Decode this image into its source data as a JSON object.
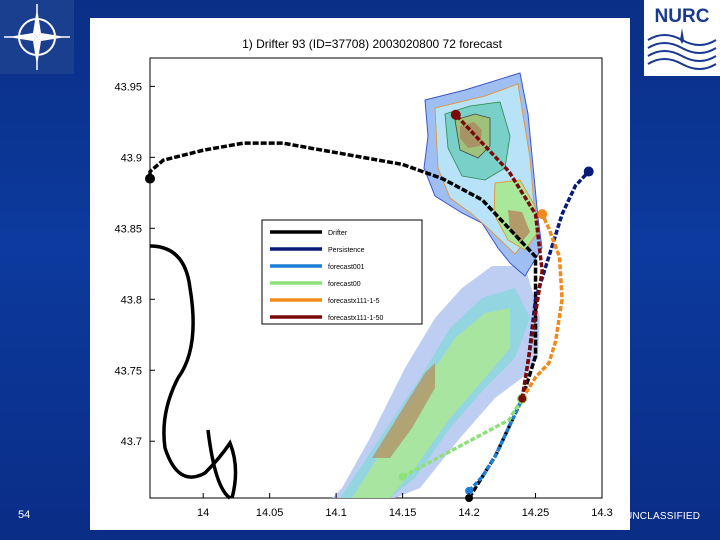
{
  "slide": {
    "number": "54",
    "classification": "O UNCLASSIFIED"
  },
  "logos": {
    "left": "nato-compass-logo",
    "right_text": "NURC"
  },
  "colors": {
    "slide_background": "#0b3593",
    "drifter": "#000000",
    "persistence": "#0a1a7a",
    "forecast001": "#1e7fd6",
    "forecast00": "#8ee07a",
    "forecastx111_1_5": "#f08a1c",
    "forecastx111_1_50": "#7a0a0a"
  },
  "chart_data": {
    "type": "line",
    "title": "1) Drifter 93 (ID=37708) 2003020800 72 forecast",
    "xlim": [
      13.96,
      14.3
    ],
    "ylim": [
      43.66,
      43.97
    ],
    "xticks": [
      "14",
      "14.05",
      "14.1",
      "14.15",
      "14.2",
      "14.25",
      "14.3"
    ],
    "xtick_values": [
      14,
      14.05,
      14.1,
      14.15,
      14.2,
      14.25,
      14.3
    ],
    "yticks": [
      "43.95",
      "43.9",
      "43.85",
      "43.8",
      "43.75",
      "43.7"
    ],
    "ytick_values": [
      43.95,
      43.9,
      43.85,
      43.8,
      43.75,
      43.7
    ],
    "legend": [
      "Drifter",
      "Persistence",
      "forecast001",
      "forecast00",
      "forecastx111-1-5",
      "forecastx111-1-50"
    ],
    "series": [
      {
        "name": "Drifter",
        "x": [
          14.2,
          14.22,
          14.24,
          14.25,
          14.25,
          14.25,
          14.23,
          14.21,
          14.18,
          14.15,
          14.12,
          14.09,
          14.06,
          14.03,
          14.0,
          13.97,
          13.96,
          13.96
        ],
        "y": [
          43.66,
          43.69,
          43.73,
          43.76,
          43.8,
          43.83,
          43.85,
          43.87,
          43.885,
          43.895,
          43.9,
          43.905,
          43.91,
          43.91,
          43.905,
          43.898,
          43.89,
          43.885
        ]
      },
      {
        "name": "Persistence",
        "x": [
          14.24,
          14.245,
          14.25,
          14.26,
          14.27,
          14.28,
          14.29
        ],
        "y": [
          43.73,
          43.76,
          43.8,
          43.83,
          43.86,
          43.88,
          43.89
        ]
      },
      {
        "name": "forecast001",
        "x": [
          14.2,
          14.21,
          14.22,
          14.23,
          14.24
        ],
        "y": [
          43.665,
          43.675,
          43.69,
          43.71,
          43.73
        ]
      },
      {
        "name": "forecast00",
        "x": [
          14.15,
          14.17,
          14.19,
          14.21,
          14.23,
          14.24
        ],
        "y": [
          43.675,
          43.685,
          43.695,
          43.705,
          43.715,
          43.73
        ]
      },
      {
        "name": "forecastx111-1-5",
        "x": [
          14.24,
          14.25,
          14.26,
          14.265,
          14.27,
          14.268,
          14.26,
          14.255
        ],
        "y": [
          43.73,
          43.745,
          43.755,
          43.77,
          43.8,
          43.83,
          43.85,
          43.86
        ]
      },
      {
        "name": "forecastx111-1-50",
        "x": [
          14.24,
          14.245,
          14.25,
          14.255,
          14.25,
          14.23,
          14.21,
          14.19
        ],
        "y": [
          43.73,
          43.76,
          43.79,
          43.82,
          43.86,
          43.89,
          43.91,
          43.93
        ]
      }
    ]
  }
}
